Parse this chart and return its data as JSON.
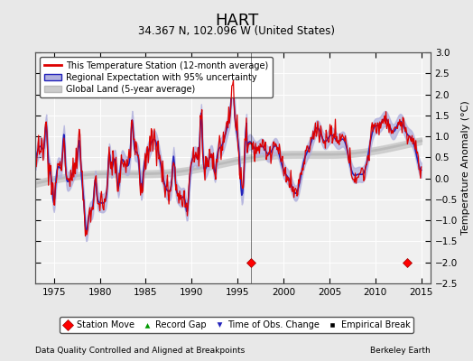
{
  "title": "HART",
  "subtitle": "34.367 N, 102.096 W (United States)",
  "ylabel": "Temperature Anomaly (°C)",
  "xlim": [
    1973,
    2016
  ],
  "ylim": [
    -2.5,
    3.0
  ],
  "yticks": [
    -2.5,
    -2,
    -1.5,
    -1,
    -0.5,
    0,
    0.5,
    1,
    1.5,
    2,
    2.5,
    3
  ],
  "xticks": [
    1975,
    1980,
    1985,
    1990,
    1995,
    2000,
    2005,
    2010,
    2015
  ],
  "station_moves": [
    1996.5,
    2013.5
  ],
  "vertical_line_x": 1996.5,
  "footnote_left": "Data Quality Controlled and Aligned at Breakpoints",
  "footnote_right": "Berkeley Earth",
  "bg_color": "#e8e8e8",
  "plot_bg_color": "#f0f0f0",
  "legend_entries": [
    "This Temperature Station (12-month average)",
    "Regional Expectation with 95% uncertainty",
    "Global Land (5-year average)"
  ],
  "red_line_color": "#dd0000",
  "blue_line_color": "#2222bb",
  "blue_fill_color": "#b0b0dd",
  "gray_line_color": "#bbbbbb",
  "gray_fill_color": "#cccccc"
}
